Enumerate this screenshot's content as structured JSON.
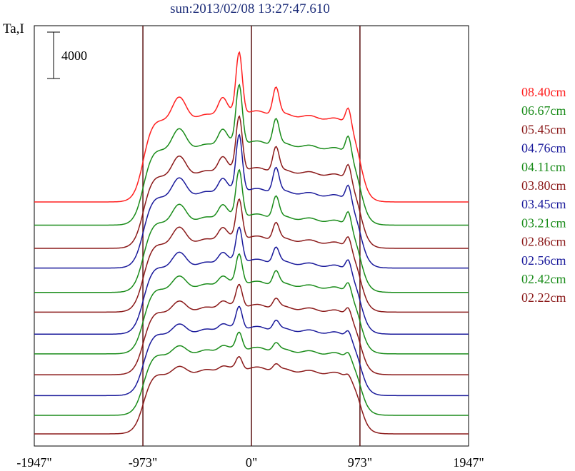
{
  "title": "sun:2013/02/08 13:27:47.610",
  "ylabel": "Ta,I",
  "scale_bar_label": "4000",
  "chart_data": {
    "type": "line",
    "title": "sun:2013/02/08 13:27:47.610",
    "ylabel": "Ta,I",
    "xlabel": "",
    "x_tick_labels": [
      "-1947\"",
      "-973\"",
      "0\"",
      "973\"",
      "1947\""
    ],
    "x_ticks": [
      -1947,
      -973,
      0,
      973,
      1947
    ],
    "xlim": [
      -1947,
      1947
    ],
    "vertical_lines": [
      -973,
      0,
      973
    ],
    "scale_bar": 4000,
    "legend_position": "right",
    "series": [
      {
        "name": "08.40cm",
        "color": "#ff2020",
        "base": 20000,
        "level": 7800,
        "peaks": [
          1,
          1.25,
          0.9,
          0.8
        ]
      },
      {
        "name": "06.67cm",
        "color": "#1a8c1a",
        "base": 18000,
        "level": 7200,
        "peaks": [
          0.9,
          1.2,
          0.85,
          0.85
        ]
      },
      {
        "name": "05.45cm",
        "color": "#8b1a1a",
        "base": 16000,
        "level": 6900,
        "peaks": [
          0.85,
          1.1,
          0.8,
          0.75
        ]
      },
      {
        "name": "04.76cm",
        "color": "#1a1a9b",
        "base": 14300,
        "level": 6800,
        "peaks": [
          0.8,
          1.15,
          0.8,
          0.75
        ]
      },
      {
        "name": "04.11cm",
        "color": "#1a8c1a",
        "base": 12200,
        "level": 6700,
        "peaks": [
          0.75,
          0.95,
          0.7,
          0.7
        ]
      },
      {
        "name": "03.80cm",
        "color": "#8b1a1a",
        "base": 10500,
        "level": 6500,
        "peaks": [
          0.7,
          0.8,
          0.55,
          0.55
        ]
      },
      {
        "name": "03.45cm",
        "color": "#1a1a9b",
        "base": 8600,
        "level": 6400,
        "peaks": [
          0.6,
          0.7,
          0.5,
          0.55
        ]
      },
      {
        "name": "03.21cm",
        "color": "#1a8c1a",
        "base": 6900,
        "level": 6200,
        "peaks": [
          0.5,
          0.6,
          0.45,
          0.5
        ]
      },
      {
        "name": "02.86cm",
        "color": "#8b1a1a",
        "base": 5100,
        "level": 6000,
        "peaks": [
          0.4,
          0.45,
          0.3,
          0.4
        ]
      },
      {
        "name": "02.56cm",
        "color": "#1a1a9b",
        "base": 3300,
        "level": 5900,
        "peaks": [
          0.35,
          0.45,
          0.3,
          0.35
        ]
      },
      {
        "name": "02.42cm",
        "color": "#1a8c1a",
        "base": 1600,
        "level": 5800,
        "peaks": [
          0.3,
          0.35,
          0.25,
          0.3
        ]
      },
      {
        "name": "02.22cm",
        "color": "#8b1a1a",
        "base": 0,
        "level": 5700,
        "peaks": [
          0.25,
          0.25,
          0.2,
          0.2
        ]
      }
    ]
  }
}
